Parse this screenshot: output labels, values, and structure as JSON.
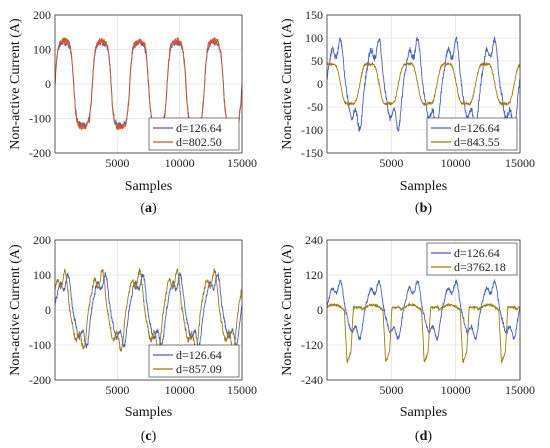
{
  "chart_data": [
    {
      "type": "line",
      "panel_label": "(a)",
      "xlabel": "Samples",
      "ylabel": "Non-active Current (A)",
      "xlim": [
        0,
        15000
      ],
      "ylim": [
        -200,
        200
      ],
      "xticks": [
        "5000",
        "10000",
        "15000"
      ],
      "yticks": [
        "200",
        "100",
        "0",
        "-100",
        "-200"
      ],
      "grid": true,
      "legend_position": "bottom-right",
      "series": [
        {
          "name": "d=126.64",
          "color": "#4a5fc1",
          "amplitude": 120,
          "period": 3000,
          "phase": 0.0,
          "shape": "flat-top"
        },
        {
          "name": "d=802.50",
          "color": "#d9541e",
          "amplitude": 125,
          "period": 3000,
          "phase": 0.0,
          "shape": "flat-top"
        }
      ]
    },
    {
      "type": "line",
      "panel_label": "(b)",
      "xlabel": "Samples",
      "ylabel": "Non-active Current (A)",
      "xlim": [
        0,
        15000
      ],
      "ylim": [
        -150,
        150
      ],
      "xticks": [
        "5000",
        "10000",
        "15000"
      ],
      "yticks": [
        "150",
        "100",
        "50",
        "0",
        "-50",
        "-100",
        "-150"
      ],
      "grid": true,
      "legend_position": "bottom-right",
      "series": [
        {
          "name": "d=126.64",
          "color": "#4a5fc1",
          "amplitude": 100,
          "period": 3000,
          "phase": 0.0,
          "shape": "spiky"
        },
        {
          "name": "d=843.55",
          "color": "#9a7d0e",
          "amplitude": 55,
          "period": 3000,
          "phase": 0.15,
          "shape": "smooth"
        }
      ]
    },
    {
      "type": "line",
      "panel_label": "(c)",
      "xlabel": "Samples",
      "ylabel": "Non-active Current (A)",
      "xlim": [
        0,
        15000
      ],
      "ylim": [
        -200,
        200
      ],
      "xticks": [
        "5000",
        "10000",
        "15000"
      ],
      "yticks": [
        "200",
        "100",
        "0",
        "-100",
        "-200"
      ],
      "grid": true,
      "legend_position": "bottom-right",
      "series": [
        {
          "name": "d=126.64",
          "color": "#4a5fc1",
          "amplitude": 105,
          "period": 3000,
          "phase": 0.0,
          "shape": "spiky"
        },
        {
          "name": "d=857.09",
          "color": "#9a7d0e",
          "amplitude": 115,
          "period": 3000,
          "phase": 0.08,
          "shape": "spiky"
        }
      ]
    },
    {
      "type": "line",
      "panel_label": "(d)",
      "xlabel": "Samples",
      "ylabel": "Non-active Current (A)",
      "xlim": [
        0,
        15000
      ],
      "ylim": [
        -240,
        240
      ],
      "xticks": [
        "5000",
        "10000",
        "15000"
      ],
      "yticks": [
        "240",
        "120",
        "0",
        "-120",
        "-240"
      ],
      "grid": true,
      "legend_position": "top-right",
      "series": [
        {
          "name": "d=126.64",
          "color": "#4a5fc1",
          "amplitude": 100,
          "period": 3000,
          "phase": 0.0,
          "shape": "spiky"
        },
        {
          "name": "d=3762.18",
          "color": "#9a7d0e",
          "amplitude": 180,
          "period": 3000,
          "phase": 0.1,
          "shape": "pulse"
        }
      ]
    }
  ]
}
